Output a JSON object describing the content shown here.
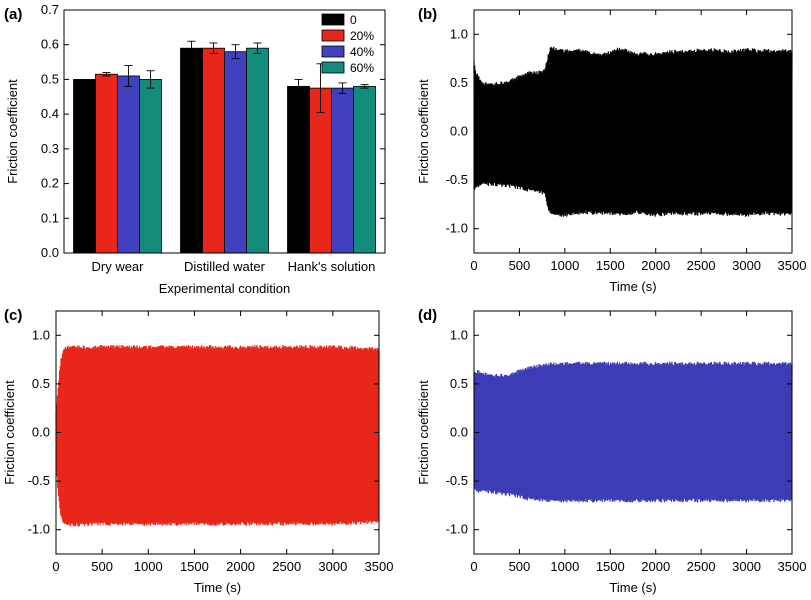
{
  "chart_data": [
    {
      "panel": "(a)",
      "type": "bar",
      "categories": [
        "Dry wear",
        "Distilled water",
        "Hank's solution"
      ],
      "series": [
        {
          "name": "0",
          "color": "#000000",
          "values": [
            0.5,
            0.59,
            0.48
          ],
          "errors": [
            0.0,
            0.02,
            0.02
          ]
        },
        {
          "name": "20%",
          "color": "#e8261a",
          "values": [
            0.515,
            0.59,
            0.475
          ],
          "errors": [
            0.005,
            0.015,
            0.07
          ]
        },
        {
          "name": "40%",
          "color": "#4141c0",
          "values": [
            0.51,
            0.58,
            0.475
          ],
          "errors": [
            0.03,
            0.02,
            0.015
          ]
        },
        {
          "name": "60%",
          "color": "#148c7c",
          "values": [
            0.5,
            0.59,
            0.48
          ],
          "errors": [
            0.025,
            0.015,
            0.005
          ]
        }
      ],
      "xlabel": "Experimental condition",
      "ylabel": "Friction coefficient",
      "ylim": [
        0.0,
        0.7
      ],
      "yticks": [
        "0.0",
        "0.1",
        "0.2",
        "0.3",
        "0.4",
        "0.5",
        "0.6",
        "0.7"
      ],
      "legend": "top-right"
    },
    {
      "panel": "(b)",
      "type": "area",
      "color": "#000000",
      "xlabel": "Time (s)",
      "ylabel": "Friction coefficient",
      "xlim": [
        0,
        3500
      ],
      "ylim": [
        -1.25,
        1.25
      ],
      "xticks": [
        "0",
        "500",
        "1000",
        "1500",
        "2000",
        "2500",
        "3000",
        "3500"
      ],
      "yticks": [
        "-1.0",
        "-0.5",
        "0.0",
        "0.5",
        "1.0"
      ],
      "x": [
        0,
        20,
        100,
        200,
        300,
        400,
        500,
        600,
        700,
        780,
        820,
        850,
        1000,
        1200,
        1400,
        1600,
        1800,
        2000,
        2200,
        2400,
        2600,
        2800,
        3000,
        3200,
        3400,
        3500
      ],
      "upper": [
        0.72,
        0.62,
        0.52,
        0.5,
        0.52,
        0.55,
        0.58,
        0.62,
        0.62,
        0.65,
        0.82,
        0.88,
        0.85,
        0.85,
        0.8,
        0.87,
        0.82,
        0.82,
        0.84,
        0.85,
        0.86,
        0.84,
        0.86,
        0.85,
        0.85,
        0.85
      ],
      "lower": [
        -0.65,
        -0.58,
        -0.56,
        -0.56,
        -0.57,
        -0.58,
        -0.6,
        -0.62,
        -0.63,
        -0.66,
        -0.82,
        -0.87,
        -0.88,
        -0.85,
        -0.86,
        -0.87,
        -0.85,
        -0.88,
        -0.86,
        -0.87,
        -0.86,
        -0.87,
        -0.88,
        -0.86,
        -0.87,
        -0.87
      ]
    },
    {
      "panel": "(c)",
      "type": "area",
      "color": "#e8261a",
      "xlabel": "Time (s)",
      "ylabel": "Friction coefficient",
      "xlim": [
        0,
        3500
      ],
      "ylim": [
        -1.25,
        1.25
      ],
      "xticks": [
        "0",
        "500",
        "1000",
        "1500",
        "2000",
        "2500",
        "3000",
        "3500"
      ],
      "yticks": [
        "-1.0",
        "-0.5",
        "0.0",
        "0.5",
        "1.0"
      ],
      "x": [
        0,
        20,
        50,
        80,
        100,
        500,
        1000,
        1500,
        2000,
        2500,
        3000,
        3500
      ],
      "upper": [
        0.2,
        0.45,
        0.75,
        0.88,
        0.9,
        0.9,
        0.9,
        0.9,
        0.9,
        0.9,
        0.9,
        0.88
      ],
      "lower": [
        -0.3,
        -0.6,
        -0.85,
        -0.95,
        -0.97,
        -0.96,
        -0.96,
        -0.96,
        -0.96,
        -0.96,
        -0.96,
        -0.94
      ]
    },
    {
      "panel": "(d)",
      "type": "area",
      "color": "#3c3cb4",
      "xlabel": "Time (s)",
      "ylabel": "Friction coefficient",
      "xlim": [
        0,
        3500
      ],
      "ylim": [
        -1.25,
        1.25
      ],
      "xticks": [
        "0",
        "500",
        "1000",
        "1500",
        "2000",
        "2500",
        "3000",
        "3500"
      ],
      "yticks": [
        "-1.0",
        "-0.5",
        "0.0",
        "0.5",
        "1.0"
      ],
      "x": [
        0,
        50,
        200,
        400,
        600,
        800,
        1000,
        1500,
        2000,
        2500,
        3000,
        3500
      ],
      "upper": [
        0.62,
        0.65,
        0.6,
        0.62,
        0.68,
        0.72,
        0.73,
        0.73,
        0.73,
        0.73,
        0.73,
        0.73
      ],
      "lower": [
        -0.6,
        -0.62,
        -0.63,
        -0.66,
        -0.7,
        -0.72,
        -0.72,
        -0.72,
        -0.72,
        -0.72,
        -0.72,
        -0.72
      ]
    }
  ]
}
